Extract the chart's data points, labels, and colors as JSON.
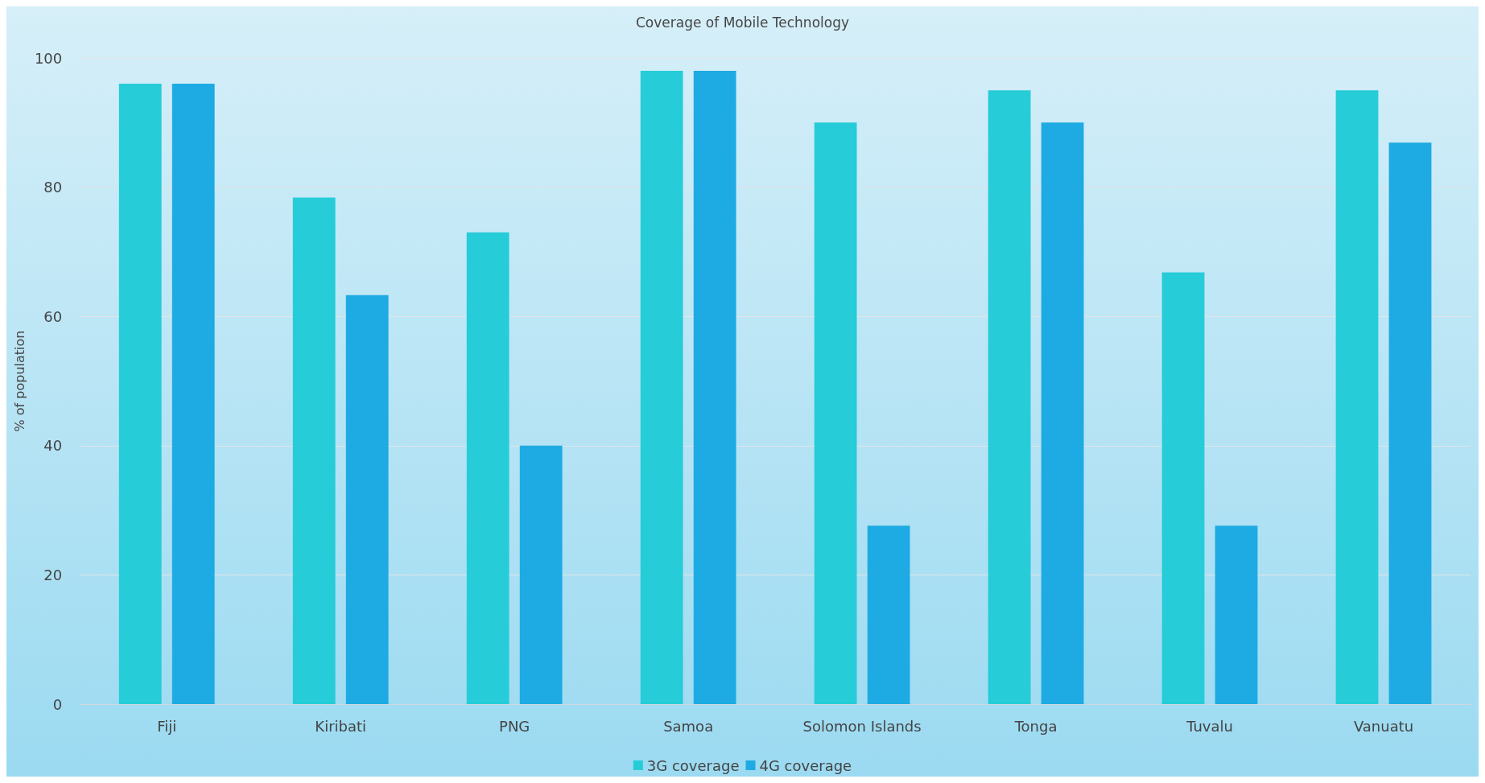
{
  "chart_data": {
    "type": "bar",
    "title": "Coverage of Mobile Technology",
    "ylabel": "% of population",
    "categories": [
      "Fiji",
      "Kiribati",
      "PNG",
      "Samoa",
      "Solomon Islands",
      "Tonga",
      "Tuvalu",
      "Vanuatu"
    ],
    "series": [
      {
        "name": "3G coverage",
        "color": "#26ccd8",
        "values": [
          96,
          78.4,
          73,
          98,
          90,
          95,
          66.8,
          95
        ]
      },
      {
        "name": "4G coverage",
        "color": "#1eaae2",
        "values": [
          96,
          63.3,
          40,
          98,
          27.6,
          90,
          27.6,
          86.9
        ]
      }
    ],
    "ylim": [
      0,
      100
    ],
    "yticks": [
      0,
      20,
      40,
      60,
      80,
      100
    ],
    "grid": "y",
    "legend": "bottom"
  }
}
